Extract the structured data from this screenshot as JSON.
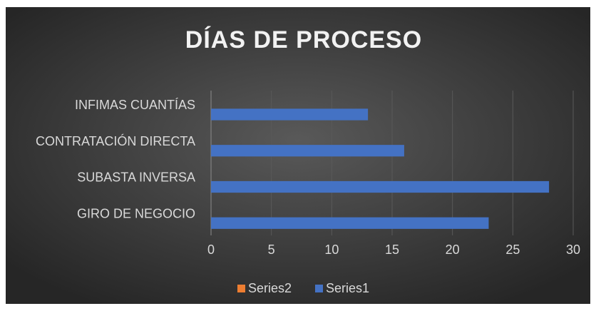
{
  "chart_data": {
    "type": "bar",
    "orientation": "horizontal",
    "title": "DÍAS DE PROCESO",
    "categories": [
      "GIRO DE NEGOCIO",
      "SUBASTA INVERSA",
      "CONTRATACIÓN DIRECTA",
      "INFIMAS CUANTÍAS"
    ],
    "series": [
      {
        "name": "Series2",
        "color": "#ed7d31",
        "values": [
          null,
          null,
          null,
          null
        ]
      },
      {
        "name": "Series1",
        "color": "#4472c4",
        "values": [
          23,
          28,
          16,
          13
        ]
      }
    ],
    "xlim": [
      0,
      30
    ],
    "xticks": [
      0,
      5,
      10,
      15,
      20,
      25,
      30
    ],
    "grid": true,
    "legend": "bottom"
  }
}
